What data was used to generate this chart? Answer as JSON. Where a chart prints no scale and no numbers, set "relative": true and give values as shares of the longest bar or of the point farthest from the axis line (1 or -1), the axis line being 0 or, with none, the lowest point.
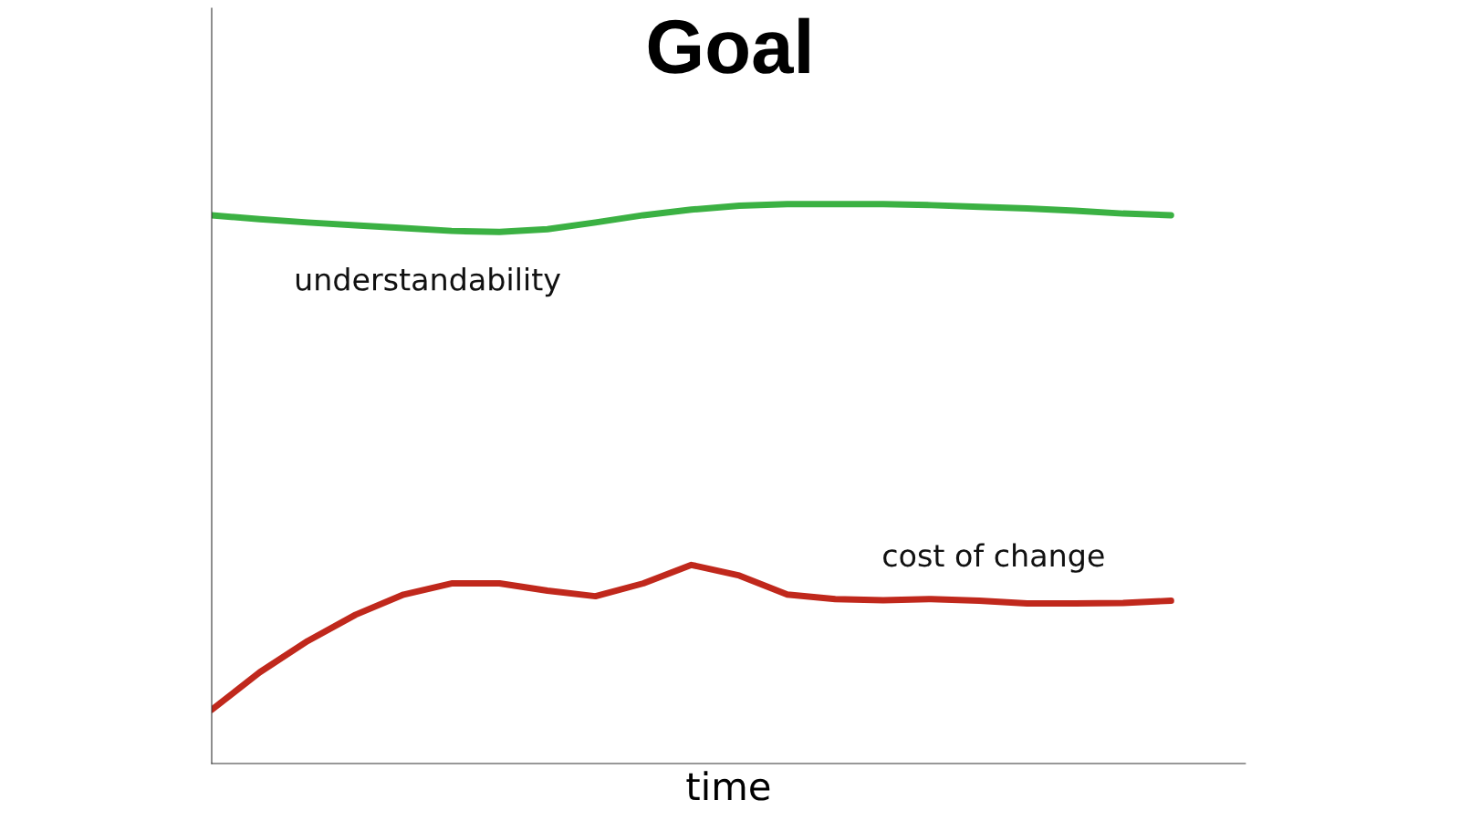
{
  "chart_data": {
    "type": "line",
    "title": "Goal",
    "xlabel": "time",
    "relative": true,
    "tick_labels": false,
    "categories": [
      null,
      null,
      null,
      null,
      null,
      null,
      null,
      null,
      null,
      null,
      null,
      null,
      null,
      null,
      null,
      null,
      null,
      null,
      null,
      null,
      null
    ],
    "series": [
      {
        "name": "understandability",
        "color": "#3bb143",
        "values": [
          0.98,
          0.973,
          0.967,
          0.962,
          0.957,
          0.952,
          0.95,
          0.955,
          0.967,
          0.98,
          0.99,
          0.997,
          1,
          1,
          1,
          0.998,
          0.995,
          0.992,
          0.988,
          0.983,
          0.98
        ]
      },
      {
        "name": "cost of change",
        "color": "#c0281c",
        "values": [
          0.096,
          0.163,
          0.219,
          0.266,
          0.302,
          0.322,
          0.322,
          0.309,
          0.299,
          0.322,
          0.355,
          0.336,
          0.302,
          0.294,
          0.292,
          0.294,
          0.291,
          0.286,
          0.286,
          0.287,
          0.291
        ]
      }
    ]
  }
}
